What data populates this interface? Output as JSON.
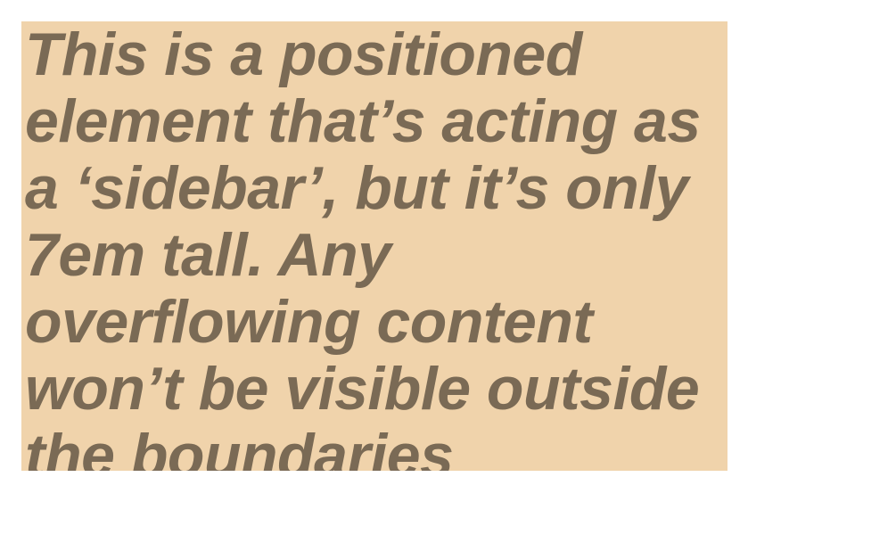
{
  "sidebar": {
    "text": "This is a positioned element that’s acting as a ‘sidebar’, but it’s only 7em tall. Any overflowing content won’t be visible outside the boundaries"
  },
  "colors": {
    "sidebar_background": "#f0d3ab",
    "sidebar_text": "#7a6a55",
    "page_background": "#ffffff"
  }
}
